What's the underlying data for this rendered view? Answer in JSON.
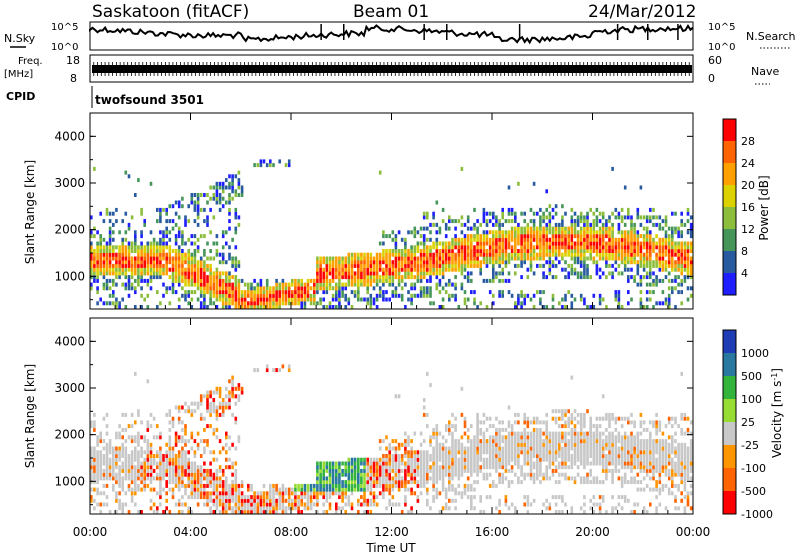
{
  "header": {
    "station": "Saskatoon (fitACF)",
    "beam": "Beam 01",
    "date": "24/Mar/2012"
  },
  "top_panels": {
    "nsky_label": "N.Sky",
    "nsearch_label": "N.Search",
    "nsky_ticks": [
      "10^5",
      "10^0"
    ],
    "nsearch_ticks": [
      "10^5",
      "10^0"
    ],
    "freq_label": "Freq.",
    "freq_unit": "[MHz]",
    "freq_ticks": [
      "18",
      "8"
    ],
    "nave_label": "Nave",
    "nave_ticks": [
      "60",
      "0"
    ],
    "cpid_label": "CPID",
    "cpid_value": "twofsound 3501"
  },
  "chart_data": [
    {
      "type": "heatmap",
      "name": "power",
      "ylabel": "Slant Range [km]",
      "y_ticks": [
        "4000",
        "3000",
        "2000",
        "1000"
      ],
      "ylim": [
        300,
        4500
      ],
      "colorbar_label": "Power [dB]",
      "colorbar_ticks": [
        "28",
        "24",
        "20",
        "16",
        "12",
        "8",
        "4"
      ],
      "colors": [
        "#ff0000",
        "#ff6400",
        "#ffa000",
        "#dcd200",
        "#8cbe3c",
        "#46965a",
        "#285aa0",
        "#1e1eff"
      ]
    },
    {
      "type": "heatmap",
      "name": "velocity",
      "ylabel": "Slant Range [km]",
      "y_ticks": [
        "4000",
        "3000",
        "2000",
        "1000"
      ],
      "ylim": [
        300,
        4500
      ],
      "colorbar_label": "Velocity [m s^-1]",
      "colorbar_ticks": [
        "1000",
        "500",
        "100",
        "25",
        "-25",
        "-100",
        "-500",
        "-1000"
      ],
      "colors": [
        "#1e3cb4",
        "#2878a0",
        "#32b43c",
        "#96dc32",
        "#c8c8c8",
        "#ff9600",
        "#ff6400",
        "#ff0000"
      ]
    }
  ],
  "x_axis": {
    "ticks": [
      "00:00",
      "04:00",
      "08:00",
      "12:00",
      "16:00",
      "20:00",
      "00:00"
    ],
    "label": "Time UT"
  }
}
